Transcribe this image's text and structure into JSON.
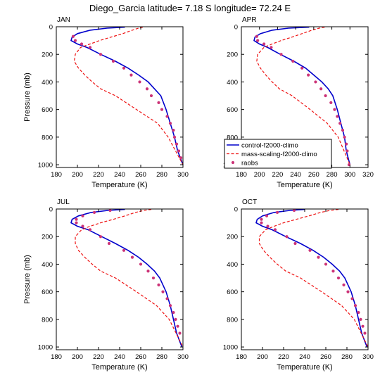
{
  "title": "Diego_Garcia  latitude= 7.18 S longitude= 72.24 E",
  "colors": {
    "control": "#0000cc",
    "mass_scaling": "#ee1111",
    "raobs": "#cc3377"
  },
  "legend": {
    "entries": [
      "control-f2000-climo",
      "mass-scaling-f2000-climo",
      "raobs"
    ]
  },
  "chart_data": [
    {
      "type": "line",
      "panel_label": "JAN",
      "xlabel": "Temperature (K)",
      "ylabel": "Pressure (mb)",
      "xlim": [
        180,
        300
      ],
      "ylim": [
        1020,
        0
      ],
      "xticks": [
        "180",
        "200",
        "220",
        "240",
        "260",
        "280",
        "300"
      ],
      "yticks": [
        "0",
        "200",
        "400",
        "600",
        "800",
        "1000"
      ],
      "yaxis_reversed": true,
      "series": [
        {
          "name": "control-f2000-climo",
          "style": "solid",
          "color": "#0000cc",
          "x": [
            245,
            228,
            212,
            200,
            195,
            194,
            200,
            209,
            222,
            236,
            248,
            258,
            267,
            273,
            279,
            284,
            288,
            292,
            295,
            300
          ],
          "y": [
            3,
            10,
            25,
            50,
            75,
            100,
            125,
            150,
            200,
            250,
            300,
            350,
            400,
            450,
            500,
            600,
            700,
            800,
            900,
            1000
          ]
        },
        {
          "name": "mass-scaling-f2000-climo",
          "style": "dashed",
          "color": "#ee1111",
          "x": [
            262,
            258,
            252,
            243,
            232,
            221,
            212,
            203,
            198,
            197,
            201,
            207,
            214,
            222,
            236,
            256,
            276,
            286,
            300
          ],
          "y": [
            3,
            10,
            25,
            50,
            75,
            100,
            125,
            150,
            200,
            250,
            300,
            350,
            400,
            450,
            500,
            600,
            700,
            800,
            1000
          ]
        },
        {
          "name": "raobs",
          "style": "markers",
          "color": "#cc3377",
          "x": [
            196,
            198,
            204,
            212,
            222,
            234,
            244,
            251,
            259,
            266,
            270,
            277,
            280,
            285,
            288,
            291,
            292,
            294,
            296,
            298
          ],
          "y": [
            70,
            100,
            125,
            150,
            200,
            250,
            300,
            350,
            400,
            450,
            500,
            550,
            600,
            650,
            700,
            750,
            800,
            850,
            900,
            950
          ]
        }
      ]
    },
    {
      "type": "line",
      "panel_label": "APR",
      "xlabel": "Temperature (K)",
      "ylabel": "",
      "xlim": [
        180,
        320
      ],
      "ylim": [
        1020,
        0
      ],
      "xticks": [
        "180",
        "200",
        "220",
        "240",
        "260",
        "280",
        "300",
        "320"
      ],
      "yticks": [
        "0",
        "200",
        "400",
        "600",
        "800",
        "1000"
      ],
      "yaxis_reversed": true,
      "series": [
        {
          "name": "control-f2000-climo",
          "style": "solid",
          "color": "#0000cc",
          "x": [
            255,
            232,
            214,
            201,
            195,
            194,
            200,
            209,
            223,
            238,
            251,
            260,
            269,
            276,
            281,
            286,
            290,
            294,
            296,
            300
          ],
          "y": [
            3,
            10,
            25,
            50,
            75,
            100,
            125,
            150,
            200,
            250,
            300,
            350,
            400,
            450,
            500,
            600,
            700,
            800,
            900,
            1000
          ]
        },
        {
          "name": "mass-scaling-f2000-climo",
          "style": "dashed",
          "color": "#ee1111",
          "x": [
            272,
            266,
            258,
            247,
            236,
            224,
            214,
            205,
            198,
            197,
            201,
            207,
            214,
            222,
            236,
            256,
            275,
            287,
            300
          ],
          "y": [
            3,
            10,
            25,
            50,
            75,
            100,
            125,
            150,
            200,
            250,
            300,
            350,
            400,
            450,
            500,
            600,
            700,
            800,
            1000
          ]
        },
        {
          "name": "raobs",
          "style": "markers",
          "color": "#cc3377",
          "x": [
            197,
            198,
            205,
            213,
            224,
            237,
            247,
            254,
            262,
            268,
            273,
            279,
            283,
            286,
            289,
            292,
            294,
            296,
            297,
            299
          ],
          "y": [
            70,
            100,
            125,
            150,
            200,
            250,
            300,
            350,
            400,
            450,
            500,
            550,
            600,
            650,
            700,
            750,
            800,
            850,
            900,
            1000
          ]
        }
      ]
    },
    {
      "type": "line",
      "panel_label": "JUL",
      "xlabel": "Temperature (K)",
      "ylabel": "Pressure (mb)",
      "xlim": [
        180,
        300
      ],
      "ylim": [
        1020,
        0
      ],
      "xticks": [
        "180",
        "200",
        "220",
        "240",
        "260",
        "280",
        "300"
      ],
      "yticks": [
        "0",
        "200",
        "400",
        "600",
        "800",
        "1000"
      ],
      "yaxis_reversed": true,
      "series": [
        {
          "name": "control-f2000-climo",
          "style": "solid",
          "color": "#0000cc",
          "x": [
            245,
            229,
            213,
            201,
            195,
            194,
            200,
            210,
            223,
            236,
            248,
            258,
            266,
            273,
            278,
            284,
            288,
            291,
            294,
            299
          ],
          "y": [
            3,
            10,
            25,
            50,
            75,
            100,
            125,
            150,
            200,
            250,
            300,
            350,
            400,
            450,
            500,
            600,
            700,
            800,
            900,
            1000
          ]
        },
        {
          "name": "mass-scaling-f2000-climo",
          "style": "dashed",
          "color": "#ee1111",
          "x": [
            270,
            263,
            255,
            245,
            234,
            222,
            212,
            204,
            198,
            198,
            201,
            207,
            214,
            222,
            236,
            256,
            275,
            287,
            300
          ],
          "y": [
            3,
            10,
            25,
            50,
            75,
            100,
            125,
            150,
            200,
            250,
            300,
            350,
            400,
            450,
            500,
            600,
            700,
            800,
            1000
          ]
        },
        {
          "name": "raobs",
          "style": "markers",
          "color": "#cc3377",
          "x": [
            231,
            216,
            205,
            199,
            199,
            205,
            212,
            222,
            230,
            244,
            252,
            260,
            267,
            272,
            277,
            281,
            285,
            288,
            291,
            293,
            295,
            297
          ],
          "y": [
            10,
            25,
            50,
            75,
            100,
            125,
            150,
            200,
            250,
            300,
            350,
            400,
            450,
            500,
            550,
            600,
            650,
            700,
            750,
            800,
            850,
            900
          ]
        }
      ]
    },
    {
      "type": "line",
      "panel_label": "OCT",
      "xlabel": "Temperature (K)",
      "ylabel": "",
      "xlim": [
        180,
        300
      ],
      "ylim": [
        1020,
        0
      ],
      "xticks": [
        "180",
        "200",
        "220",
        "240",
        "260",
        "280",
        "300"
      ],
      "yticks": [
        "0",
        "200",
        "400",
        "600",
        "800",
        "1000"
      ],
      "yaxis_reversed": true,
      "series": [
        {
          "name": "control-f2000-climo",
          "style": "solid",
          "color": "#0000cc",
          "x": [
            240,
            226,
            211,
            200,
            195,
            194,
            200,
            209,
            222,
            236,
            248,
            258,
            266,
            273,
            278,
            284,
            288,
            291,
            294,
            299
          ],
          "y": [
            3,
            10,
            25,
            50,
            75,
            100,
            125,
            150,
            200,
            250,
            300,
            350,
            400,
            450,
            500,
            600,
            700,
            800,
            900,
            1000
          ]
        },
        {
          "name": "mass-scaling-f2000-climo",
          "style": "dashed",
          "color": "#ee1111",
          "x": [
            272,
            264,
            255,
            244,
            232,
            220,
            211,
            203,
            197,
            197,
            201,
            207,
            214,
            222,
            236,
            256,
            275,
            287,
            300
          ],
          "y": [
            3,
            10,
            25,
            50,
            75,
            100,
            125,
            150,
            200,
            250,
            300,
            350,
            400,
            450,
            500,
            600,
            700,
            800,
            1000
          ]
        },
        {
          "name": "raobs",
          "style": "markers",
          "color": "#cc3377",
          "x": [
            230,
            214,
            204,
            199,
            199,
            205,
            212,
            223,
            231,
            245,
            253,
            260,
            267,
            272,
            277,
            281,
            285,
            288,
            291,
            293,
            295,
            297
          ],
          "y": [
            10,
            25,
            50,
            75,
            100,
            125,
            150,
            200,
            250,
            300,
            350,
            400,
            450,
            500,
            550,
            600,
            650,
            700,
            750,
            800,
            850,
            900
          ]
        }
      ]
    }
  ]
}
